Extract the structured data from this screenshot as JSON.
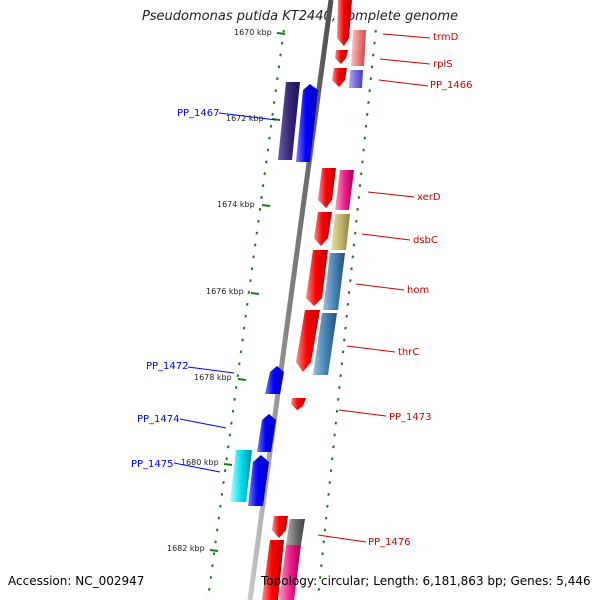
{
  "title": "Pseudomonas putida KT2440, complete genome",
  "footer": {
    "accession": "Accession: NC_002947",
    "summary": "Topology: circular; Length: 6,181,863 bp; Genes: 5,446"
  },
  "kbp_labels": [
    "1670 kbp",
    "1672 kbp",
    "1674 kbp",
    "1676 kbp",
    "1678 kbp",
    "1680 kbp",
    "1682 kbp"
  ],
  "genes_left": [
    "PP_1467",
    "PP_1472",
    "PP_1474",
    "PP_1475"
  ],
  "genes_right": [
    "trmD",
    "rplS",
    "PP_1466",
    "xerD",
    "dsbC",
    "hom",
    "thrC",
    "PP_1473",
    "PP_1476"
  ],
  "colors": {
    "backbone": "#8a8a8a",
    "forward_gene": "#0000ff",
    "reverse_gene": "#ff0000",
    "tick": "#1a7a1a"
  }
}
